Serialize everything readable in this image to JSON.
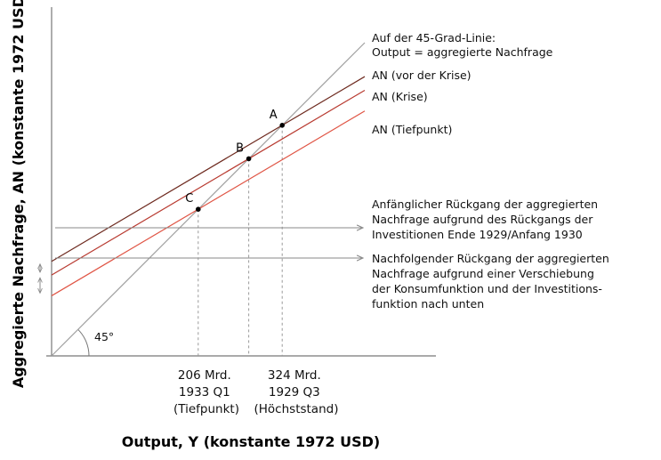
{
  "chart_data": {
    "type": "line",
    "xlabel": "Output, Y (konstante 1972 USD)",
    "ylabel": "Aggregierte Nachfrage, AN (konstante 1972 USD)",
    "angle_label": "45°",
    "x_ticks": [
      {
        "value": 206,
        "lines": [
          "206 Mrd.",
          "1933 Q1",
          "(Tiefpunkt)"
        ]
      },
      {
        "value": 324,
        "lines": [
          "324 Mrd.",
          "1929 Q3",
          "(Höchststand)"
        ]
      }
    ],
    "series": [
      {
        "name": "Auf der 45-Grad-Linie: Output = aggregierte Nachfrage",
        "label_lines": [
          "Auf der 45-Grad-Linie:",
          "Output = aggregierte Nachfrage"
        ],
        "color": "#a0a0a0"
      },
      {
        "name": "AN (vor der Krise)",
        "label_lines": [
          "AN (vor der Krise)"
        ],
        "color": "#6e2a1f"
      },
      {
        "name": "AN (Krise)",
        "label_lines": [
          "AN (Krise)"
        ],
        "color": "#b83a30"
      },
      {
        "name": "AN (Tiefpunkt)",
        "label_lines": [
          "AN (Tiefpunkt)"
        ],
        "color": "#e05545"
      }
    ],
    "points": [
      {
        "label": "A",
        "x": 324,
        "y": 324
      },
      {
        "label": "B",
        "x": 277,
        "y": 277
      },
      {
        "label": "C",
        "x": 206,
        "y": 206
      }
    ],
    "annotations": [
      {
        "lines": [
          "Anfänglicher Rückgang der aggregierten",
          "Nachfrage aufgrund des Rückgangs der",
          "Investitionen Ende 1929/Anfang 1930"
        ]
      },
      {
        "lines": [
          "Nachfolgender Rückgang der aggregierten",
          "Nachfrage aufgrund einer Verschiebung",
          "der Konsumfunktion und der Investitions-",
          "funktion nach unten"
        ]
      }
    ]
  }
}
